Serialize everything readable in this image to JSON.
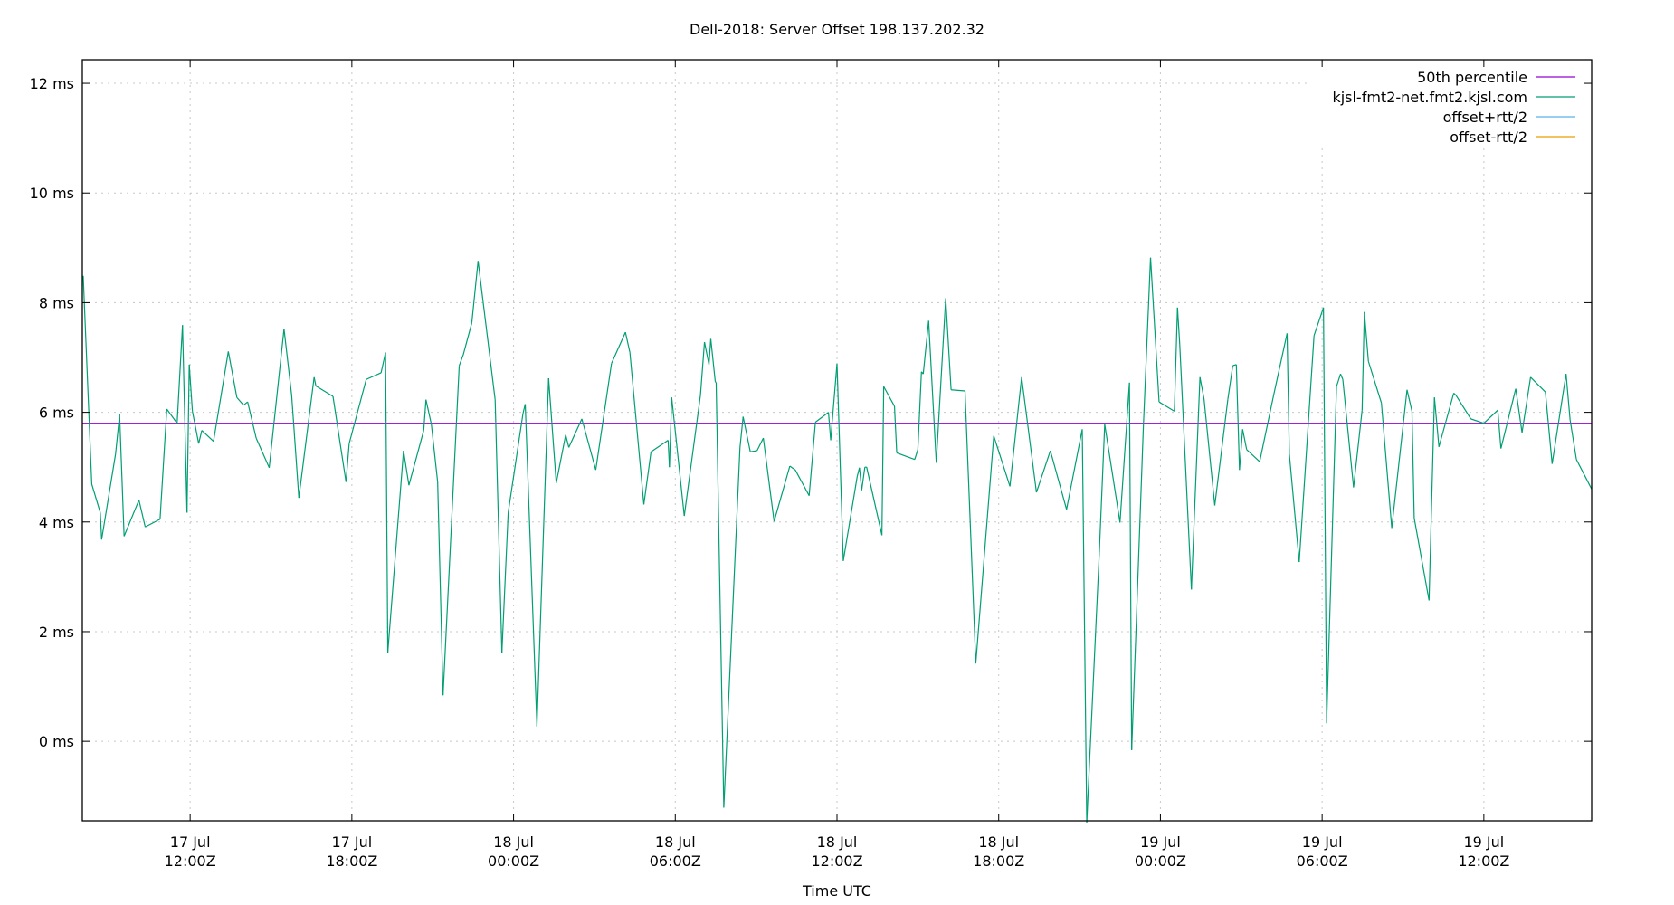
{
  "chart_data": {
    "type": "line",
    "title": "Dell-2018: Server Offset 198.137.202.32",
    "xlabel": "Time UTC",
    "ylabel": "",
    "y_unit": "ms",
    "xlim": [
      "Jul 17 08:00",
      "Jul 19 16:00"
    ],
    "ylim": [
      -1.45,
      12.43
    ],
    "grid": true,
    "legend_position": "top-right",
    "y_ticks": [
      {
        "value": 0,
        "label": "0 ms"
      },
      {
        "value": 2,
        "label": "2 ms"
      },
      {
        "value": 4,
        "label": "4 ms"
      },
      {
        "value": 6,
        "label": "6 ms"
      },
      {
        "value": 8,
        "label": "8 ms"
      },
      {
        "value": 10,
        "label": "10 ms"
      },
      {
        "value": 12,
        "label": "12 ms"
      }
    ],
    "x_ticks": [
      {
        "time": "Jul 17 12:00",
        "line1": "17 Jul",
        "line2": "12:00Z"
      },
      {
        "time": "Jul 17 18:00",
        "line1": "17 Jul",
        "line2": "18:00Z"
      },
      {
        "time": "Jul 18 00:00",
        "line1": "18 Jul",
        "line2": "00:00Z"
      },
      {
        "time": "Jul 18 06:00",
        "line1": "18 Jul",
        "line2": "06:00Z"
      },
      {
        "time": "Jul 18 12:00",
        "line1": "18 Jul",
        "line2": "12:00Z"
      },
      {
        "time": "Jul 18 18:00",
        "line1": "18 Jul",
        "line2": "18:00Z"
      },
      {
        "time": "Jul 19 00:00",
        "line1": "19 Jul",
        "line2": "00:00Z"
      },
      {
        "time": "Jul 19 06:00",
        "line1": "19 Jul",
        "line2": "06:00Z"
      },
      {
        "time": "Jul 19 12:00",
        "line1": "19 Jul",
        "line2": "12:00Z"
      }
    ],
    "legend": [
      {
        "name": "50th percentile",
        "color": "#9400D3"
      },
      {
        "name": "kjsl-fmt2-net.fmt2.kjsl.com",
        "color": "#009E73"
      },
      {
        "name": "offset+rtt/2",
        "color": "#56B4E9"
      },
      {
        "name": "offset-rtt/2",
        "color": "#E69F00"
      }
    ],
    "series": [
      {
        "name": "50th percentile",
        "color": "#9400D3",
        "constant": 5.8
      },
      {
        "name": "kjsl-fmt2-net.fmt2.kjsl.com",
        "color": "#009E73",
        "points": [
          [
            "Jul 17 08:02",
            8.49
          ],
          [
            "Jul 17 08:21",
            4.69
          ],
          [
            "Jul 17 08:40",
            4.17
          ],
          [
            "Jul 17 08:43",
            3.68
          ],
          [
            "Jul 17 09:14",
            5.24
          ],
          [
            "Jul 17 09:23",
            5.96
          ],
          [
            "Jul 17 09:33",
            3.74
          ],
          [
            "Jul 17 10:06",
            4.4
          ],
          [
            "Jul 17 10:20",
            3.91
          ],
          [
            "Jul 17 10:53",
            4.05
          ],
          [
            "Jul 17 11:08",
            6.06
          ],
          [
            "Jul 17 11:31",
            5.8
          ],
          [
            "Jul 17 11:43",
            7.59
          ],
          [
            "Jul 17 11:53",
            4.17
          ],
          [
            "Jul 17 11:58",
            6.87
          ],
          [
            "Jul 17 12:05",
            6.02
          ],
          [
            "Jul 17 12:19",
            5.43
          ],
          [
            "Jul 17 12:26",
            5.67
          ],
          [
            "Jul 17 12:52",
            5.47
          ],
          [
            "Jul 17 13:25",
            7.11
          ],
          [
            "Jul 17 13:44",
            6.27
          ],
          [
            "Jul 17 13:59",
            6.13
          ],
          [
            "Jul 17 14:08",
            6.19
          ],
          [
            "Jul 17 14:27",
            5.53
          ],
          [
            "Jul 17 14:56",
            4.99
          ],
          [
            "Jul 17 15:29",
            7.52
          ],
          [
            "Jul 17 15:46",
            6.31
          ],
          [
            "Jul 17 16:02",
            4.44
          ],
          [
            "Jul 17 16:36",
            6.64
          ],
          [
            "Jul 17 16:40",
            6.48
          ],
          [
            "Jul 17 17:18",
            6.29
          ],
          [
            "Jul 17 17:47",
            4.73
          ],
          [
            "Jul 17 17:54",
            5.43
          ],
          [
            "Jul 17 18:32",
            6.6
          ],
          [
            "Jul 17 19:05",
            6.72
          ],
          [
            "Jul 17 19:15",
            7.09
          ],
          [
            "Jul 17 19:20",
            1.62
          ],
          [
            "Jul 17 19:55",
            5.3
          ],
          [
            "Jul 17 20:07",
            4.67
          ],
          [
            "Jul 17 20:40",
            5.67
          ],
          [
            "Jul 17 20:45",
            6.23
          ],
          [
            "Jul 17 20:57",
            5.78
          ],
          [
            "Jul 17 21:11",
            4.73
          ],
          [
            "Jul 17 21:23",
            0.84
          ],
          [
            "Jul 17 21:59",
            6.85
          ],
          [
            "Jul 17 22:08",
            7.05
          ],
          [
            "Jul 17 22:27",
            7.63
          ],
          [
            "Jul 17 22:41",
            8.76
          ],
          [
            "Jul 17 23:19",
            6.23
          ],
          [
            "Jul 17 23:34",
            1.62
          ],
          [
            "Jul 17 23:48",
            4.17
          ],
          [
            "Jul 18 00:21",
            5.98
          ],
          [
            "Jul 18 00:26",
            6.15
          ],
          [
            "Jul 18 00:52",
            0.27
          ],
          [
            "Jul 18 01:18",
            6.62
          ],
          [
            "Jul 18 01:35",
            4.71
          ],
          [
            "Jul 18 01:56",
            5.59
          ],
          [
            "Jul 18 02:03",
            5.36
          ],
          [
            "Jul 18 02:32",
            5.88
          ],
          [
            "Jul 18 03:03",
            4.95
          ],
          [
            "Jul 18 03:38",
            6.89
          ],
          [
            "Jul 18 04:09",
            7.46
          ],
          [
            "Jul 18 04:19",
            7.09
          ],
          [
            "Jul 18 04:50",
            4.32
          ],
          [
            "Jul 18 05:06",
            5.28
          ],
          [
            "Jul 18 05:44",
            5.49
          ],
          [
            "Jul 18 05:47",
            5.0
          ],
          [
            "Jul 18 05:52",
            6.27
          ],
          [
            "Jul 18 06:20",
            4.11
          ],
          [
            "Jul 18 06:56",
            6.31
          ],
          [
            "Jul 18 07:05",
            7.28
          ],
          [
            "Jul 18 07:15",
            6.87
          ],
          [
            "Jul 18 07:19",
            7.34
          ],
          [
            "Jul 18 07:29",
            6.56
          ],
          [
            "Jul 18 07:31",
            6.54
          ],
          [
            "Jul 18 07:48",
            -1.21
          ],
          [
            "Jul 18 08:24",
            5.36
          ],
          [
            "Jul 18 08:31",
            5.92
          ],
          [
            "Jul 18 08:47",
            5.28
          ],
          [
            "Jul 18 09:02",
            5.3
          ],
          [
            "Jul 18 09:16",
            5.53
          ],
          [
            "Jul 18 09:40",
            4.01
          ],
          [
            "Jul 18 10:15",
            5.02
          ],
          [
            "Jul 18 10:27",
            4.95
          ],
          [
            "Jul 18 10:58",
            4.48
          ],
          [
            "Jul 18 11:12",
            5.82
          ],
          [
            "Jul 18 11:41",
            6.0
          ],
          [
            "Jul 18 11:46",
            5.49
          ],
          [
            "Jul 18 12:00",
            6.89
          ],
          [
            "Jul 18 12:14",
            3.29
          ],
          [
            "Jul 18 12:45",
            4.83
          ],
          [
            "Jul 18 12:50",
            4.99
          ],
          [
            "Jul 18 12:55",
            4.58
          ],
          [
            "Jul 18 13:02",
            5.0
          ],
          [
            "Jul 18 13:06",
            5.0
          ],
          [
            "Jul 18 13:40",
            3.76
          ],
          [
            "Jul 18 13:44",
            6.47
          ],
          [
            "Jul 18 14:08",
            6.11
          ],
          [
            "Jul 18 14:13",
            5.26
          ],
          [
            "Jul 18 14:53",
            5.14
          ],
          [
            "Jul 18 15:00",
            5.32
          ],
          [
            "Jul 18 15:08",
            6.74
          ],
          [
            "Jul 18 15:12",
            6.7
          ],
          [
            "Jul 18 15:24",
            7.67
          ],
          [
            "Jul 18 15:41",
            5.08
          ],
          [
            "Jul 18 16:02",
            8.08
          ],
          [
            "Jul 18 16:14",
            6.41
          ],
          [
            "Jul 18 16:45",
            6.39
          ],
          [
            "Jul 18 17:09",
            1.42
          ],
          [
            "Jul 18 17:49",
            5.57
          ],
          [
            "Jul 18 18:25",
            4.65
          ],
          [
            "Jul 18 18:51",
            6.64
          ],
          [
            "Jul 18 19:24",
            4.54
          ],
          [
            "Jul 18 19:55",
            5.3
          ],
          [
            "Jul 18 20:31",
            4.23
          ],
          [
            "Jul 18 21:06",
            5.69
          ],
          [
            "Jul 18 21:16",
            -1.48
          ],
          [
            "Jul 18 21:44",
            3.45
          ],
          [
            "Jul 18 21:56",
            5.78
          ],
          [
            "Jul 18 22:30",
            3.99
          ],
          [
            "Jul 18 22:51",
            6.54
          ],
          [
            "Jul 18 22:56",
            -0.16
          ],
          [
            "Jul 18 23:22",
            5.73
          ],
          [
            "Jul 18 23:38",
            8.82
          ],
          [
            "Jul 18 23:57",
            6.19
          ],
          [
            "Jul 19 00:31",
            6.02
          ],
          [
            "Jul 19 00:38",
            7.91
          ],
          [
            "Jul 19 00:43",
            7.24
          ],
          [
            "Jul 19 01:09",
            2.77
          ],
          [
            "Jul 19 01:28",
            6.64
          ],
          [
            "Jul 19 01:37",
            6.25
          ],
          [
            "Jul 19 02:01",
            4.3
          ],
          [
            "Jul 19 02:30",
            6.23
          ],
          [
            "Jul 19 02:41",
            6.85
          ],
          [
            "Jul 19 02:49",
            6.87
          ],
          [
            "Jul 19 02:56",
            4.95
          ],
          [
            "Jul 19 03:03",
            5.69
          ],
          [
            "Jul 19 03:12",
            5.32
          ],
          [
            "Jul 19 03:41",
            5.1
          ],
          [
            "Jul 19 04:12",
            6.31
          ],
          [
            "Jul 19 04:42",
            7.44
          ],
          [
            "Jul 19 04:47",
            5.24
          ],
          [
            "Jul 19 05:09",
            3.27
          ],
          [
            "Jul 19 05:42",
            7.4
          ],
          [
            "Jul 19 06:03",
            7.91
          ],
          [
            "Jul 19 06:10",
            0.33
          ],
          [
            "Jul 19 06:32",
            6.47
          ],
          [
            "Jul 19 06:41",
            6.7
          ],
          [
            "Jul 19 06:46",
            6.6
          ],
          [
            "Jul 19 07:10",
            4.63
          ],
          [
            "Jul 19 07:29",
            6.04
          ],
          [
            "Jul 19 07:34",
            7.83
          ],
          [
            "Jul 19 07:43",
            6.93
          ],
          [
            "Jul 19 08:12",
            6.17
          ],
          [
            "Jul 19 08:35",
            3.89
          ],
          [
            "Jul 19 09:09",
            6.41
          ],
          [
            "Jul 19 09:20",
            6.02
          ],
          [
            "Jul 19 09:25",
            4.07
          ],
          [
            "Jul 19 09:58",
            2.57
          ],
          [
            "Jul 19 10:10",
            6.27
          ],
          [
            "Jul 19 10:20",
            5.37
          ],
          [
            "Jul 19 10:53",
            6.35
          ],
          [
            "Jul 19 10:58",
            6.31
          ],
          [
            "Jul 19 11:31",
            5.88
          ],
          [
            "Jul 19 12:00",
            5.8
          ],
          [
            "Jul 19 12:31",
            6.04
          ],
          [
            "Jul 19 12:38",
            5.34
          ],
          [
            "Jul 19 13:11",
            6.43
          ],
          [
            "Jul 19 13:25",
            5.63
          ],
          [
            "Jul 19 13:44",
            6.64
          ],
          [
            "Jul 19 14:17",
            6.37
          ],
          [
            "Jul 19 14:32",
            5.06
          ],
          [
            "Jul 19 15:03",
            6.7
          ],
          [
            "Jul 19 15:12",
            5.86
          ],
          [
            "Jul 19 15:26",
            5.14
          ],
          [
            "Jul 19 16:00",
            4.6
          ]
        ]
      },
      {
        "name": "offset+rtt/2",
        "color": "#56B4E9",
        "points": []
      },
      {
        "name": "offset-rtt/2",
        "color": "#E69F00",
        "points": []
      }
    ]
  }
}
